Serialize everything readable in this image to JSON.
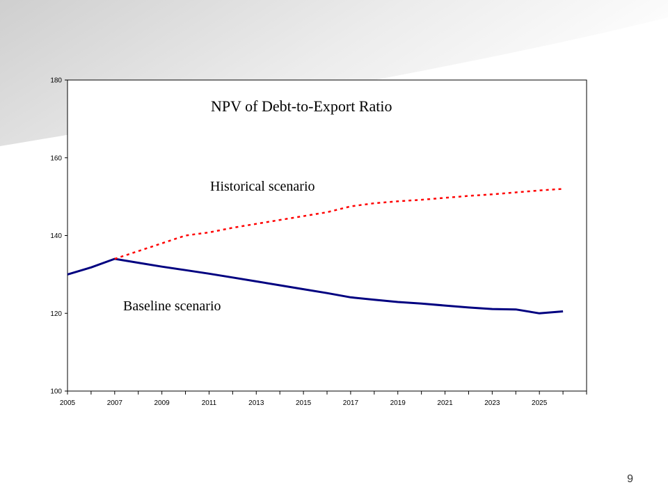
{
  "slide": {
    "page_number": "9",
    "colors": {
      "background": "#ffffff",
      "corner_gradient": "#d9d9d9"
    }
  },
  "chart_data": {
    "type": "line",
    "title": "NPV of Debt-to-Export Ratio",
    "xlabel": "",
    "ylabel": "",
    "xlim": [
      2005,
      2027
    ],
    "ylim": [
      100,
      180
    ],
    "x_ticks": [
      "2005",
      "2007",
      "2009",
      "2011",
      "2013",
      "2015",
      "2017",
      "2019",
      "2021",
      "2023",
      "2025"
    ],
    "y_ticks": [
      "100",
      "120",
      "140",
      "160",
      "180"
    ],
    "grid": false,
    "series": [
      {
        "name": "Baseline scenario",
        "color": "#000080",
        "style": "solid",
        "x": [
          2005,
          2006,
          2007,
          2008,
          2009,
          2010,
          2011,
          2012,
          2013,
          2014,
          2015,
          2016,
          2017,
          2018,
          2019,
          2020,
          2021,
          2022,
          2023,
          2024,
          2025,
          2026
        ],
        "y": [
          130,
          131.8,
          134,
          133,
          132,
          131.1,
          130.2,
          129.2,
          128.2,
          127.2,
          126.2,
          125.2,
          124.1,
          123.5,
          122.9,
          122.5,
          122.0,
          121.5,
          121.1,
          121.0,
          120.0,
          120.5
        ]
      },
      {
        "name": "Historical scenario",
        "color": "#ff0000",
        "style": "dotted",
        "x": [
          2007,
          2008,
          2009,
          2010,
          2011,
          2012,
          2013,
          2014,
          2015,
          2016,
          2017,
          2018,
          2019,
          2020,
          2021,
          2022,
          2023,
          2024,
          2025,
          2026
        ],
        "y": [
          134,
          136,
          138,
          140,
          140.8,
          142,
          143,
          144,
          145,
          146,
          147.5,
          148.3,
          148.8,
          149.2,
          149.7,
          150.2,
          150.6,
          151.1,
          151.6,
          152
        ]
      }
    ]
  }
}
